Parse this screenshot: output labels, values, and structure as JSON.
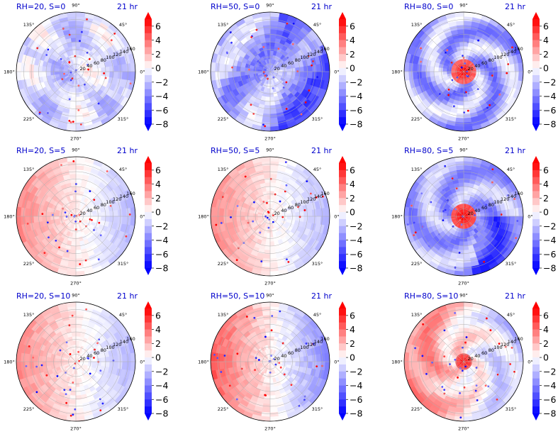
{
  "figure": {
    "time_label": "21 hr",
    "title_color": "#0000cc",
    "direction_labels": [
      "90°",
      "45°",
      "0°",
      "315°",
      "270°",
      "225°",
      "180°",
      "135°"
    ],
    "radius_labels": [
      "20",
      "40",
      "60",
      "80",
      "100",
      "120",
      "140",
      "160"
    ],
    "colorbar": {
      "ticks": [
        "6",
        "4",
        "2",
        "0",
        "−2",
        "−4",
        "−6",
        "−8"
      ],
      "vmin": -8,
      "vmax": 7,
      "colormap": "bwr",
      "low_color": "#0000ff",
      "mid_color": "#ffffff",
      "high_color": "#ff0000"
    }
  },
  "chart_data": [
    {
      "type": "heatmap",
      "projection": "polar",
      "title": "RH=20, S=0",
      "pattern": "scattered_weak",
      "center_value": 0,
      "extra": ""
    },
    {
      "type": "heatmap",
      "projection": "polar",
      "title": "RH=50, S=0",
      "pattern": "scattered_blue",
      "center_value": 0,
      "extra": ""
    },
    {
      "type": "heatmap",
      "projection": "polar",
      "title": "RH=80, S=0",
      "pattern": "vortex_core_red_spiral_bands",
      "center_value": 7,
      "extra": ""
    },
    {
      "type": "heatmap",
      "projection": "polar",
      "title": "RH=20, S=5",
      "pattern": "red_west_blue_east",
      "center_value": 2,
      "extra": ""
    },
    {
      "type": "heatmap",
      "projection": "polar",
      "title": "RH=50, S=5",
      "pattern": "red_west_blue_east",
      "center_value": -2,
      "extra": ""
    },
    {
      "type": "heatmap",
      "projection": "polar",
      "title": "RH=80, S=5",
      "pattern": "vortex_core_red_blue_southeast",
      "center_value": 7,
      "extra": ""
    },
    {
      "type": "heatmap",
      "projection": "polar",
      "title": "RH=20, S=10",
      "pattern": "red_west_blue_east",
      "center_value": 2,
      "extra": ""
    },
    {
      "type": "heatmap",
      "projection": "polar",
      "title": "RH=50, S=10",
      "pattern": "red_west_blue_east_strong",
      "center_value": 3,
      "extra": ""
    },
    {
      "type": "heatmap",
      "projection": "polar",
      "title": "RH=80, S=10",
      "pattern": "vortex_core_red_blue_east",
      "center_value": 6,
      "extra": ""
    }
  ]
}
